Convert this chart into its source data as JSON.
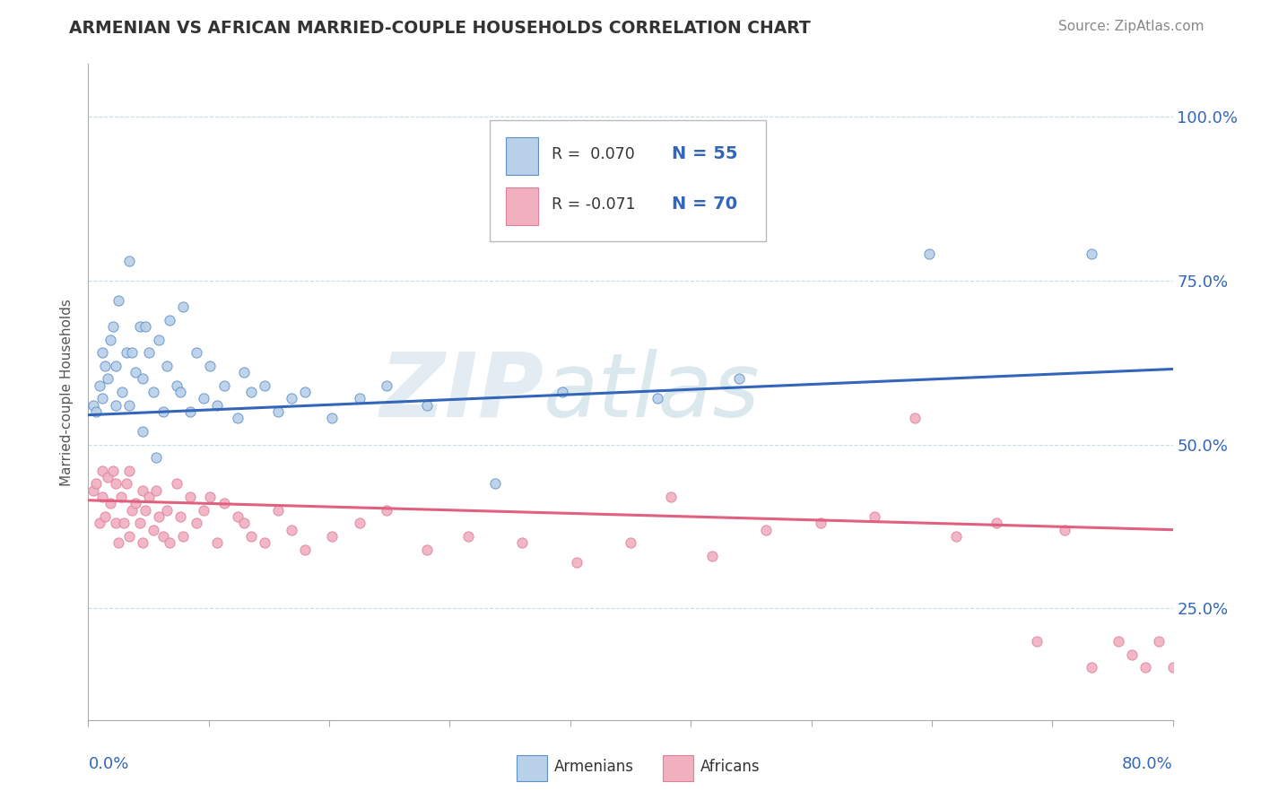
{
  "title": "ARMENIAN VS AFRICAN MARRIED-COUPLE HOUSEHOLDS CORRELATION CHART",
  "source": "Source: ZipAtlas.com",
  "ylabel": "Married-couple Households",
  "ytick_labels": [
    "25.0%",
    "50.0%",
    "75.0%",
    "100.0%"
  ],
  "ytick_values": [
    0.25,
    0.5,
    0.75,
    1.0
  ],
  "xmin": 0.0,
  "xmax": 0.8,
  "ymin": 0.08,
  "ymax": 1.08,
  "color_armenian_fill": "#b8d0e8",
  "color_armenian_edge": "#6090c8",
  "color_african_fill": "#f0b0c0",
  "color_african_edge": "#e08098",
  "color_line_armenian": "#3366bb",
  "color_line_african": "#e06080",
  "color_axis_label": "#3366bb",
  "color_title": "#333333",
  "color_source": "#888888",
  "color_ylabel": "#555555",
  "color_grid": "#c8dce8",
  "watermark": "ZIP",
  "watermark2": "atlas",
  "arm_line_start": 0.545,
  "arm_line_end": 0.615,
  "afr_line_start": 0.415,
  "afr_line_end": 0.37,
  "armenian_x": [
    0.004,
    0.006,
    0.008,
    0.01,
    0.01,
    0.012,
    0.014,
    0.016,
    0.018,
    0.02,
    0.02,
    0.022,
    0.025,
    0.028,
    0.03,
    0.03,
    0.032,
    0.035,
    0.038,
    0.04,
    0.04,
    0.042,
    0.045,
    0.048,
    0.05,
    0.052,
    0.055,
    0.058,
    0.06,
    0.065,
    0.068,
    0.07,
    0.075,
    0.08,
    0.085,
    0.09,
    0.095,
    0.1,
    0.11,
    0.115,
    0.12,
    0.13,
    0.14,
    0.15,
    0.16,
    0.18,
    0.2,
    0.22,
    0.25,
    0.3,
    0.35,
    0.42,
    0.48,
    0.62,
    0.74
  ],
  "armenian_y": [
    0.56,
    0.55,
    0.59,
    0.57,
    0.64,
    0.62,
    0.6,
    0.66,
    0.68,
    0.56,
    0.62,
    0.72,
    0.58,
    0.64,
    0.78,
    0.56,
    0.64,
    0.61,
    0.68,
    0.52,
    0.6,
    0.68,
    0.64,
    0.58,
    0.48,
    0.66,
    0.55,
    0.62,
    0.69,
    0.59,
    0.58,
    0.71,
    0.55,
    0.64,
    0.57,
    0.62,
    0.56,
    0.59,
    0.54,
    0.61,
    0.58,
    0.59,
    0.55,
    0.57,
    0.58,
    0.54,
    0.57,
    0.59,
    0.56,
    0.44,
    0.58,
    0.57,
    0.6,
    0.79,
    0.79
  ],
  "african_x": [
    0.004,
    0.006,
    0.008,
    0.01,
    0.01,
    0.012,
    0.014,
    0.016,
    0.018,
    0.02,
    0.02,
    0.022,
    0.024,
    0.026,
    0.028,
    0.03,
    0.03,
    0.032,
    0.035,
    0.038,
    0.04,
    0.04,
    0.042,
    0.045,
    0.048,
    0.05,
    0.052,
    0.055,
    0.058,
    0.06,
    0.065,
    0.068,
    0.07,
    0.075,
    0.08,
    0.085,
    0.09,
    0.095,
    0.1,
    0.11,
    0.115,
    0.12,
    0.13,
    0.14,
    0.15,
    0.16,
    0.18,
    0.2,
    0.22,
    0.25,
    0.28,
    0.32,
    0.36,
    0.4,
    0.43,
    0.46,
    0.5,
    0.54,
    0.58,
    0.61,
    0.64,
    0.67,
    0.7,
    0.72,
    0.74,
    0.76,
    0.77,
    0.78,
    0.79,
    0.8
  ],
  "african_y": [
    0.43,
    0.44,
    0.38,
    0.42,
    0.46,
    0.39,
    0.45,
    0.41,
    0.46,
    0.38,
    0.44,
    0.35,
    0.42,
    0.38,
    0.44,
    0.36,
    0.46,
    0.4,
    0.41,
    0.38,
    0.43,
    0.35,
    0.4,
    0.42,
    0.37,
    0.43,
    0.39,
    0.36,
    0.4,
    0.35,
    0.44,
    0.39,
    0.36,
    0.42,
    0.38,
    0.4,
    0.42,
    0.35,
    0.41,
    0.39,
    0.38,
    0.36,
    0.35,
    0.4,
    0.37,
    0.34,
    0.36,
    0.38,
    0.4,
    0.34,
    0.36,
    0.35,
    0.32,
    0.35,
    0.42,
    0.33,
    0.37,
    0.38,
    0.39,
    0.54,
    0.36,
    0.38,
    0.2,
    0.37,
    0.16,
    0.2,
    0.18,
    0.16,
    0.2,
    0.16
  ]
}
